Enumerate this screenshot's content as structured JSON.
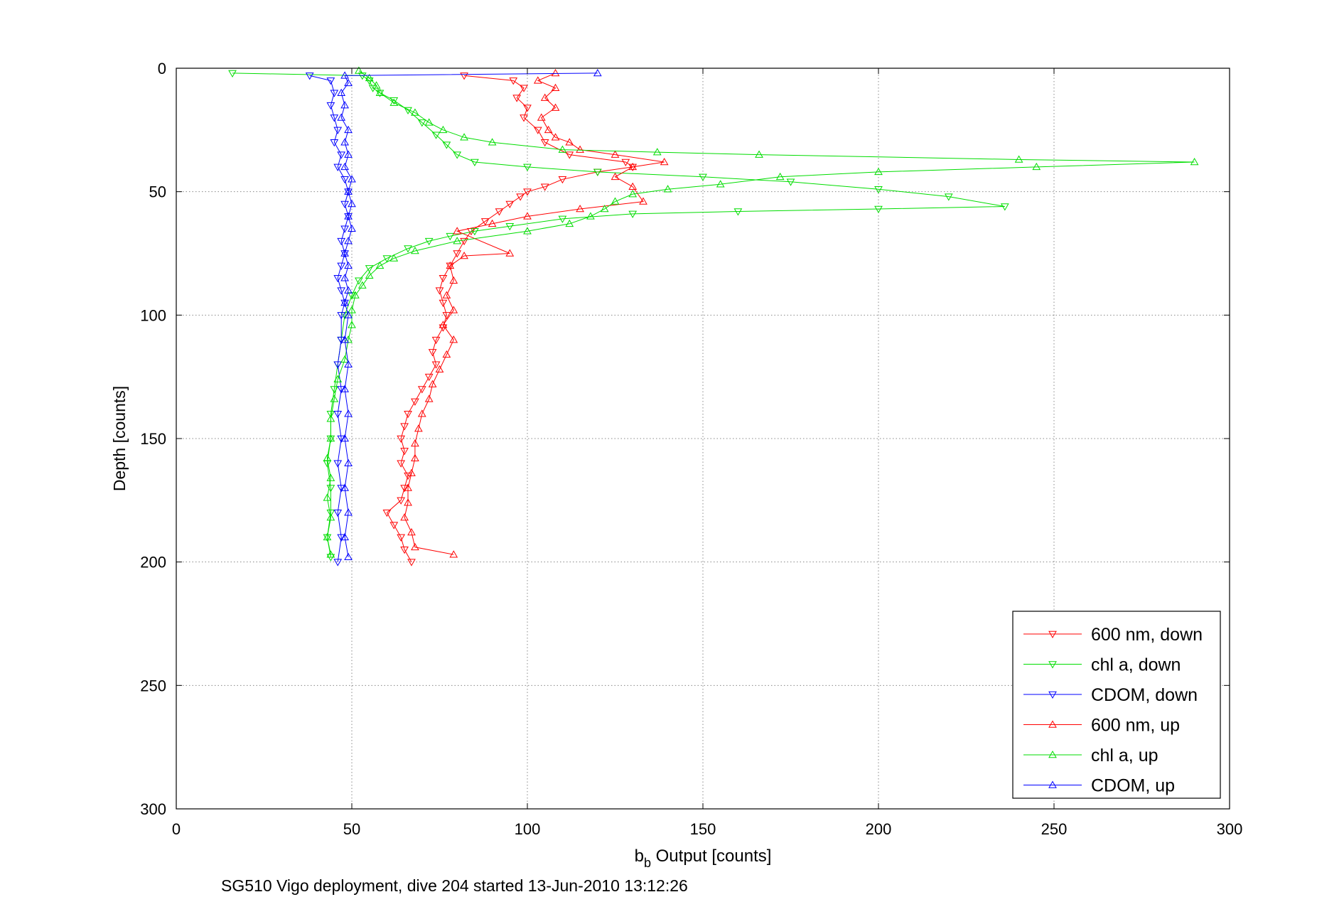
{
  "chart_data": {
    "type": "line",
    "title": "",
    "xlabel_main": "b",
    "xlabel_sub": "b",
    "xlabel_rest": " Output [counts]",
    "ylabel": "Depth [counts]",
    "caption": "SG510 Vigo deployment, dive 204 started 13-Jun-2010 13:12:26",
    "xlim": [
      0,
      300
    ],
    "ylim": [
      0,
      300
    ],
    "y_inverted": true,
    "grid": true,
    "xticks": [
      "0",
      "50",
      "100",
      "150",
      "200",
      "250",
      "300"
    ],
    "yticks": [
      "0",
      "50",
      "100",
      "150",
      "200",
      "250",
      "300"
    ],
    "legend_position": "bottom-right",
    "series": [
      {
        "name": "600 nm, down",
        "color": "#ff0000",
        "marker": "triangle-down",
        "points": [
          [
            82,
            3
          ],
          [
            96,
            5
          ],
          [
            99,
            8
          ],
          [
            97,
            12
          ],
          [
            100,
            16
          ],
          [
            99,
            20
          ],
          [
            103,
            25
          ],
          [
            105,
            30
          ],
          [
            112,
            35
          ],
          [
            128,
            38
          ],
          [
            130,
            40
          ],
          [
            120,
            42
          ],
          [
            110,
            45
          ],
          [
            105,
            48
          ],
          [
            100,
            50
          ],
          [
            98,
            52
          ],
          [
            95,
            55
          ],
          [
            92,
            58
          ],
          [
            88,
            62
          ],
          [
            84,
            66
          ],
          [
            82,
            70
          ],
          [
            80,
            75
          ],
          [
            78,
            80
          ],
          [
            76,
            85
          ],
          [
            75,
            90
          ],
          [
            76,
            95
          ],
          [
            77,
            100
          ],
          [
            76,
            105
          ],
          [
            74,
            110
          ],
          [
            73,
            115
          ],
          [
            74,
            120
          ],
          [
            72,
            125
          ],
          [
            70,
            130
          ],
          [
            68,
            135
          ],
          [
            66,
            140
          ],
          [
            65,
            145
          ],
          [
            64,
            150
          ],
          [
            65,
            155
          ],
          [
            64,
            160
          ],
          [
            66,
            165
          ],
          [
            65,
            170
          ],
          [
            64,
            175
          ],
          [
            60,
            180
          ],
          [
            62,
            185
          ],
          [
            64,
            190
          ],
          [
            65,
            195
          ],
          [
            67,
            200
          ]
        ]
      },
      {
        "name": "chl a, down",
        "color": "#00dd00",
        "marker": "triangle-down",
        "points": [
          [
            16,
            2
          ],
          [
            53,
            3
          ],
          [
            55,
            5
          ],
          [
            56,
            8
          ],
          [
            58,
            10
          ],
          [
            62,
            13
          ],
          [
            66,
            17
          ],
          [
            70,
            22
          ],
          [
            74,
            27
          ],
          [
            77,
            31
          ],
          [
            80,
            35
          ],
          [
            85,
            38
          ],
          [
            100,
            40
          ],
          [
            120,
            42
          ],
          [
            150,
            44
          ],
          [
            175,
            46
          ],
          [
            200,
            49
          ],
          [
            220,
            52
          ],
          [
            236,
            56
          ],
          [
            200,
            57
          ],
          [
            160,
            58
          ],
          [
            130,
            59
          ],
          [
            110,
            61
          ],
          [
            95,
            64
          ],
          [
            85,
            66
          ],
          [
            78,
            68
          ],
          [
            72,
            70
          ],
          [
            66,
            73
          ],
          [
            60,
            77
          ],
          [
            55,
            81
          ],
          [
            52,
            86
          ],
          [
            50,
            92
          ],
          [
            48,
            100
          ],
          [
            47,
            110
          ],
          [
            46,
            120
          ],
          [
            45,
            130
          ],
          [
            44,
            140
          ],
          [
            44,
            150
          ],
          [
            43,
            160
          ],
          [
            44,
            170
          ],
          [
            44,
            180
          ],
          [
            43,
            190
          ],
          [
            44,
            198
          ]
        ]
      },
      {
        "name": "CDOM, down",
        "color": "#0000ff",
        "marker": "triangle-down",
        "points": [
          [
            38,
            3
          ],
          [
            44,
            5
          ],
          [
            45,
            10
          ],
          [
            44,
            15
          ],
          [
            45,
            20
          ],
          [
            46,
            25
          ],
          [
            45,
            30
          ],
          [
            47,
            35
          ],
          [
            46,
            40
          ],
          [
            48,
            45
          ],
          [
            49,
            50
          ],
          [
            48,
            55
          ],
          [
            49,
            60
          ],
          [
            48,
            65
          ],
          [
            47,
            70
          ],
          [
            48,
            75
          ],
          [
            47,
            80
          ],
          [
            46,
            85
          ],
          [
            47,
            90
          ],
          [
            48,
            95
          ],
          [
            47,
            100
          ],
          [
            47,
            110
          ],
          [
            46,
            120
          ],
          [
            47,
            130
          ],
          [
            46,
            140
          ],
          [
            47,
            150
          ],
          [
            46,
            160
          ],
          [
            47,
            170
          ],
          [
            46,
            180
          ],
          [
            47,
            190
          ],
          [
            46,
            200
          ]
        ]
      },
      {
        "name": "600 nm, up",
        "color": "#ff0000",
        "marker": "triangle-up",
        "points": [
          [
            108,
            2
          ],
          [
            103,
            5
          ],
          [
            108,
            8
          ],
          [
            105,
            12
          ],
          [
            108,
            16
          ],
          [
            104,
            20
          ],
          [
            106,
            25
          ],
          [
            108,
            28
          ],
          [
            112,
            30
          ],
          [
            115,
            33
          ],
          [
            125,
            35
          ],
          [
            139,
            38
          ],
          [
            130,
            40
          ],
          [
            125,
            44
          ],
          [
            130,
            48
          ],
          [
            133,
            54
          ],
          [
            115,
            57
          ],
          [
            100,
            60
          ],
          [
            90,
            63
          ],
          [
            80,
            66
          ],
          [
            95,
            75
          ],
          [
            82,
            76
          ],
          [
            78,
            80
          ],
          [
            79,
            86
          ],
          [
            77,
            92
          ],
          [
            79,
            98
          ],
          [
            76,
            104
          ],
          [
            79,
            110
          ],
          [
            77,
            116
          ],
          [
            75,
            122
          ],
          [
            73,
            128
          ],
          [
            72,
            134
          ],
          [
            70,
            140
          ],
          [
            69,
            146
          ],
          [
            68,
            152
          ],
          [
            68,
            158
          ],
          [
            67,
            164
          ],
          [
            66,
            170
          ],
          [
            66,
            176
          ],
          [
            65,
            182
          ],
          [
            67,
            188
          ],
          [
            68,
            194
          ],
          [
            79,
            197
          ]
        ]
      },
      {
        "name": "chl a, up",
        "color": "#00dd00",
        "marker": "triangle-up",
        "points": [
          [
            52,
            1
          ],
          [
            55,
            4
          ],
          [
            57,
            7
          ],
          [
            58,
            10
          ],
          [
            62,
            14
          ],
          [
            68,
            18
          ],
          [
            72,
            22
          ],
          [
            76,
            25
          ],
          [
            82,
            28
          ],
          [
            90,
            30
          ],
          [
            110,
            33
          ],
          [
            137,
            34
          ],
          [
            166,
            35
          ],
          [
            240,
            37
          ],
          [
            290,
            38
          ],
          [
            245,
            40
          ],
          [
            200,
            42
          ],
          [
            172,
            44
          ],
          [
            155,
            47
          ],
          [
            140,
            49
          ],
          [
            130,
            51
          ],
          [
            125,
            54
          ],
          [
            122,
            57
          ],
          [
            118,
            60
          ],
          [
            112,
            63
          ],
          [
            100,
            66
          ],
          [
            80,
            70
          ],
          [
            68,
            74
          ],
          [
            62,
            77
          ],
          [
            58,
            80
          ],
          [
            55,
            84
          ],
          [
            53,
            88
          ],
          [
            51,
            92
          ],
          [
            50,
            98
          ],
          [
            50,
            104
          ],
          [
            49,
            110
          ],
          [
            48,
            118
          ],
          [
            46,
            126
          ],
          [
            45,
            134
          ],
          [
            44,
            142
          ],
          [
            44,
            150
          ],
          [
            43,
            158
          ],
          [
            44,
            166
          ],
          [
            43,
            174
          ],
          [
            44,
            182
          ],
          [
            43,
            190
          ],
          [
            44,
            197
          ]
        ]
      },
      {
        "name": "CDOM, up",
        "color": "#0000ff",
        "marker": "triangle-up",
        "points": [
          [
            120,
            2
          ],
          [
            48,
            3
          ],
          [
            49,
            6
          ],
          [
            47,
            10
          ],
          [
            48,
            15
          ],
          [
            47,
            20
          ],
          [
            49,
            25
          ],
          [
            48,
            30
          ],
          [
            49,
            35
          ],
          [
            48,
            40
          ],
          [
            50,
            45
          ],
          [
            49,
            50
          ],
          [
            50,
            55
          ],
          [
            49,
            60
          ],
          [
            50,
            65
          ],
          [
            49,
            70
          ],
          [
            48,
            75
          ],
          [
            49,
            80
          ],
          [
            48,
            85
          ],
          [
            49,
            90
          ],
          [
            48,
            95
          ],
          [
            49,
            100
          ],
          [
            48,
            110
          ],
          [
            49,
            120
          ],
          [
            48,
            130
          ],
          [
            49,
            140
          ],
          [
            48,
            150
          ],
          [
            49,
            160
          ],
          [
            48,
            170
          ],
          [
            49,
            180
          ],
          [
            48,
            190
          ],
          [
            49,
            198
          ]
        ]
      }
    ]
  }
}
